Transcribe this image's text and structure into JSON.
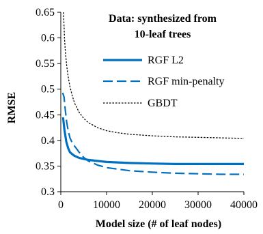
{
  "chart_data": {
    "type": "line",
    "title": "",
    "xlabel": "Model size (# of leaf nodes)",
    "ylabel": "RMSE",
    "xlim": [
      0,
      40000
    ],
    "ylim": [
      0.3,
      0.65
    ],
    "xticks": [
      0,
      10000,
      20000,
      30000,
      40000
    ],
    "xtick_labels": [
      "0",
      "10000",
      "20000",
      "30000",
      "40000"
    ],
    "yticks": [
      0.3,
      0.35,
      0.4,
      0.45,
      0.5,
      0.55,
      0.6,
      0.65
    ],
    "ytick_labels": [
      "0.3",
      "0.35",
      "0.4",
      "0.45",
      "0.5",
      "0.55",
      "0.6",
      "0.65"
    ],
    "grid": false,
    "legend_position": "top-right",
    "annotation": [
      "Data: synthesized from",
      "10-leaf trees"
    ],
    "series": [
      {
        "name": "RGF L2",
        "style": "solid",
        "color": "#0070C0",
        "x": [
          500,
          800,
          1200,
          1600,
          2000,
          2500,
          3000,
          4000,
          5000,
          6000,
          8000,
          10000,
          15000,
          20000,
          25000,
          30000,
          35000,
          40000
        ],
        "y": [
          0.445,
          0.42,
          0.398,
          0.385,
          0.377,
          0.373,
          0.37,
          0.366,
          0.364,
          0.362,
          0.36,
          0.358,
          0.356,
          0.355,
          0.354,
          0.354,
          0.354,
          0.354
        ]
      },
      {
        "name": "RGF min-penalty",
        "style": "dashed",
        "color": "#0070C0",
        "x": [
          400,
          700,
          1000,
          1300,
          1600,
          2000,
          2500,
          3000,
          3500,
          4000,
          5000,
          6000,
          8000,
          10000,
          15000,
          20000,
          25000,
          30000,
          35000,
          40000
        ],
        "y": [
          0.493,
          0.485,
          0.458,
          0.435,
          0.42,
          0.405,
          0.395,
          0.389,
          0.383,
          0.377,
          0.367,
          0.36,
          0.352,
          0.347,
          0.341,
          0.338,
          0.336,
          0.335,
          0.334,
          0.334
        ]
      },
      {
        "name": "GBDT",
        "style": "dotted",
        "color": "#000000",
        "x": [
          600,
          800,
          1000,
          1300,
          1600,
          2000,
          2500,
          3000,
          4000,
          5000,
          6000,
          8000,
          10000,
          12500,
          15000,
          20000,
          25000,
          30000,
          35000,
          40000
        ],
        "y": [
          0.65,
          0.6,
          0.573,
          0.545,
          0.525,
          0.505,
          0.487,
          0.473,
          0.455,
          0.443,
          0.435,
          0.425,
          0.419,
          0.415,
          0.412,
          0.409,
          0.407,
          0.406,
          0.405,
          0.404
        ]
      }
    ]
  }
}
